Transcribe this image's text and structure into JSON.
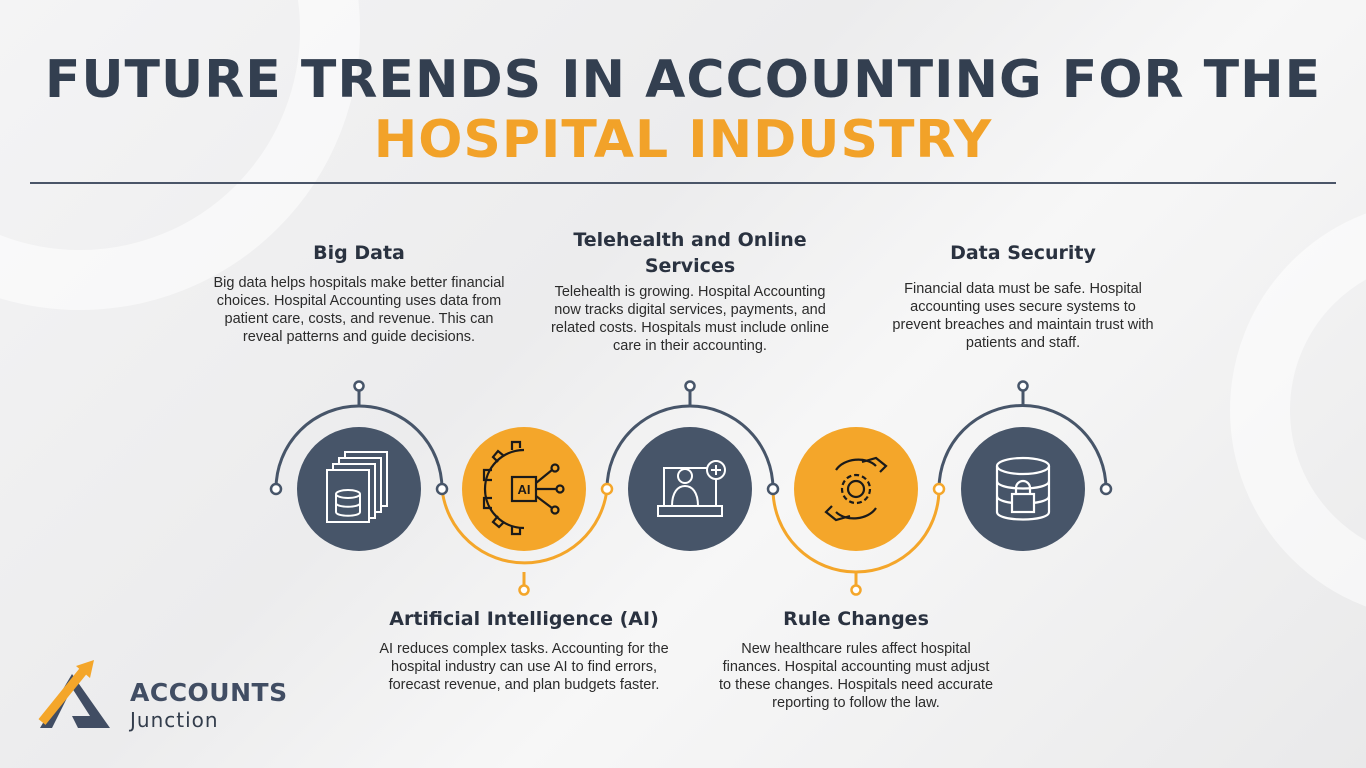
{
  "title": {
    "line1": "FUTURE TRENDS IN ACCOUNTING FOR THE",
    "line2": "HOSPITAL INDUSTRY"
  },
  "colors": {
    "dark": "#475569",
    "orange": "#f4a62a",
    "title_dark": "#333f50",
    "title_orange": "#f2a229"
  },
  "items": [
    {
      "heading": "Big Data",
      "text": "Big data helps hospitals make better financial choices. Hospital Accounting uses data from patient care, costs, and revenue. This can reveal patterns and guide decisions.",
      "icon": "database-documents-icon"
    },
    {
      "heading": "Artificial Intelligence (AI)",
      "text": "AI reduces complex tasks. Accounting for the hospital industry can use AI to find errors, forecast revenue, and plan budgets faster.",
      "icon": "ai-gear-chip-icon",
      "icon_text": "AI"
    },
    {
      "heading": "Telehealth and Online Services",
      "text": "Telehealth is growing. Hospital Accounting now tracks digital services, payments, and related costs. Hospitals must include online care in their accounting.",
      "icon": "laptop-doctor-icon"
    },
    {
      "heading": "Rule Changes",
      "text": "New healthcare rules affect hospital finances. Hospital accounting must adjust to these changes. Hospitals need accurate reporting to follow the law.",
      "icon": "hands-gear-icon"
    },
    {
      "heading": "Data Security",
      "text": "Financial data must be safe. Hospital accounting uses secure systems to prevent breaches and maintain trust with patients and staff.",
      "icon": "database-lock-icon"
    }
  ],
  "logo": {
    "line1": "ACCOUNTS",
    "line2": "Junction"
  }
}
